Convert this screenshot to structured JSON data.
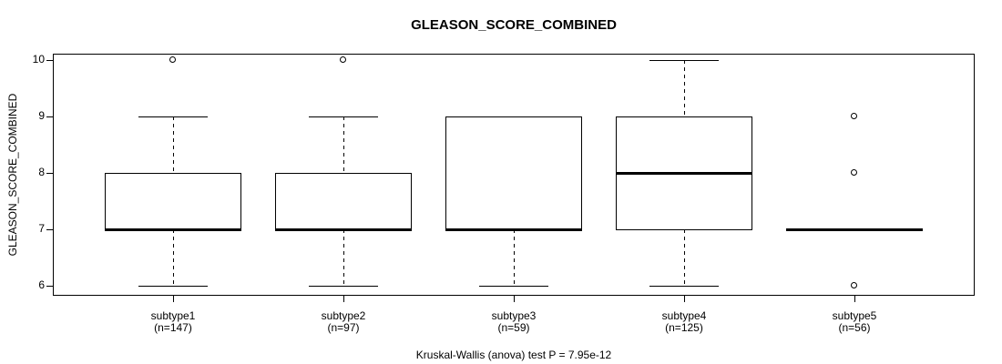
{
  "chart_data": {
    "type": "boxplot",
    "title": "GLEASON_SCORE_COMBINED",
    "ylabel": "GLEASON_SCORE_COMBINED",
    "footnote": "Kruskal-Wallis (anova) test P = 7.95e-12",
    "ylim": [
      6,
      10
    ],
    "yticks": [
      6,
      7,
      8,
      9,
      10
    ],
    "grid": false,
    "legend": null,
    "groups": [
      {
        "label": "subtype1",
        "sublabel": "(n=147)",
        "n": 147,
        "whisker_low": 6,
        "q1": 7,
        "median": 7,
        "q3": 8,
        "whisker_high": 9,
        "outliers": [
          10
        ]
      },
      {
        "label": "subtype2",
        "sublabel": "(n=97)",
        "n": 97,
        "whisker_low": 6,
        "q1": 7,
        "median": 7,
        "q3": 8,
        "whisker_high": 9,
        "outliers": [
          10
        ]
      },
      {
        "label": "subtype3",
        "sublabel": "(n=59)",
        "n": 59,
        "whisker_low": 6,
        "q1": 7,
        "median": 7,
        "q3": 9,
        "whisker_high": 9,
        "outliers": []
      },
      {
        "label": "subtype4",
        "sublabel": "(n=125)",
        "n": 125,
        "whisker_low": 6,
        "q1": 7,
        "median": 8,
        "q3": 9,
        "whisker_high": 10,
        "outliers": []
      },
      {
        "label": "subtype5",
        "sublabel": "(n=56)",
        "n": 56,
        "whisker_low": 7,
        "q1": 7,
        "median": 7,
        "q3": 7,
        "whisker_high": 7,
        "outliers": [
          9,
          8,
          6
        ]
      }
    ]
  }
}
